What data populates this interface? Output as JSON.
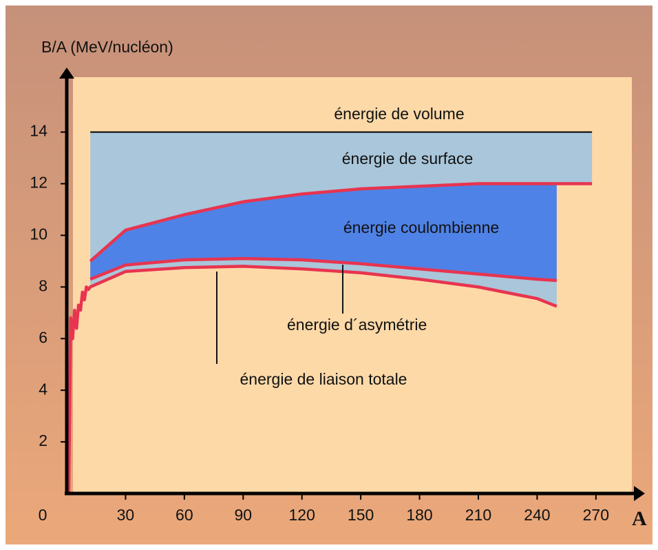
{
  "chart_data": {
    "type": "band",
    "y_label": "B/A (MeV/nucléon)",
    "x_label": "A",
    "xlim": [
      0,
      295
    ],
    "ylim": [
      0,
      16.5
    ],
    "xticks": [
      0,
      30,
      60,
      90,
      120,
      150,
      180,
      210,
      240,
      270
    ],
    "yticks": [
      2,
      4,
      6,
      8,
      10,
      12,
      14
    ],
    "series": [
      {
        "name": "énergie de volume",
        "color": "#000000",
        "fill": "#a9c6da",
        "x": [
          12,
          268
        ],
        "values": [
          14,
          14
        ]
      },
      {
        "name": "énergie de surface",
        "color": "#e8344f",
        "fill": "#4f82e6",
        "x": [
          12,
          30,
          60,
          90,
          120,
          150,
          180,
          210,
          240,
          250,
          268
        ],
        "values": [
          9.0,
          10.2,
          10.8,
          11.3,
          11.6,
          11.8,
          11.9,
          12.0,
          12.0,
          12.0,
          12.0
        ]
      },
      {
        "name": "énergie coulombienne",
        "color": "#e8344f",
        "fill": "#a9c6da",
        "x": [
          12,
          30,
          60,
          90,
          120,
          150,
          180,
          210,
          240,
          250
        ],
        "values": [
          8.3,
          8.85,
          9.05,
          9.1,
          9.05,
          8.9,
          8.7,
          8.5,
          8.3,
          8.25
        ]
      },
      {
        "name": "énergie de liaison totale",
        "color": "#e8344f",
        "x": [
          1,
          2,
          3,
          4,
          5,
          6,
          7,
          8,
          9,
          10,
          11,
          12,
          30,
          60,
          90,
          120,
          150,
          180,
          210,
          240,
          250
        ],
        "values": [
          0,
          6.8,
          6.0,
          7.1,
          6.4,
          7.3,
          7.1,
          7.8,
          7.5,
          8.0,
          7.9,
          8.0,
          8.6,
          8.75,
          8.8,
          8.7,
          8.55,
          8.3,
          8.0,
          7.55,
          7.25
        ]
      }
    ],
    "annotations": [
      "énergie d´asymétrie"
    ]
  }
}
